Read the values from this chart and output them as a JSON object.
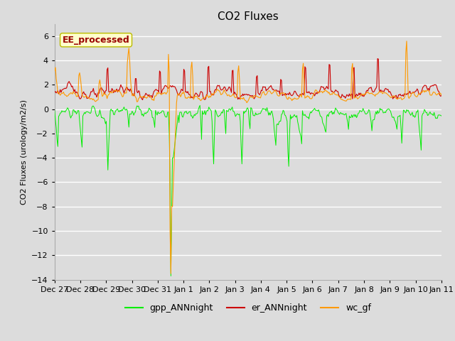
{
  "title": "CO2 Fluxes",
  "ylabel": "CO2 Fluxes (urology/m2/s)",
  "ylim": [
    -14,
    7
  ],
  "yticks": [
    -14,
    -12,
    -10,
    -8,
    -6,
    -4,
    -2,
    0,
    2,
    4,
    6
  ],
  "plot_bg_color": "#dcdcdc",
  "fig_bg_color": "#dcdcdc",
  "grid_color": "#ffffff",
  "line_colors": {
    "gpp": "#00ee00",
    "er": "#cc0000",
    "wc": "#ff9900"
  },
  "legend_labels": [
    "gpp_ANNnight",
    "er_ANNnight",
    "wc_gf"
  ],
  "annotation_text": "EE_processed",
  "annotation_color": "#990000",
  "annotation_bg": "#ffffcc",
  "annotation_border": "#bbbb00",
  "xtick_labels": [
    "Dec 27",
    "Dec 28",
    "Dec 29",
    "Dec 30",
    "Dec 31",
    "Jan 1",
    "Jan 2",
    "Jan 3",
    "Jan 4",
    "Jan 5",
    "Jan 6",
    "Jan 7",
    "Jan 8",
    "Jan 9",
    "Jan 10",
    "Jan 11"
  ],
  "title_fontsize": 11,
  "axis_fontsize": 8,
  "legend_fontsize": 9
}
